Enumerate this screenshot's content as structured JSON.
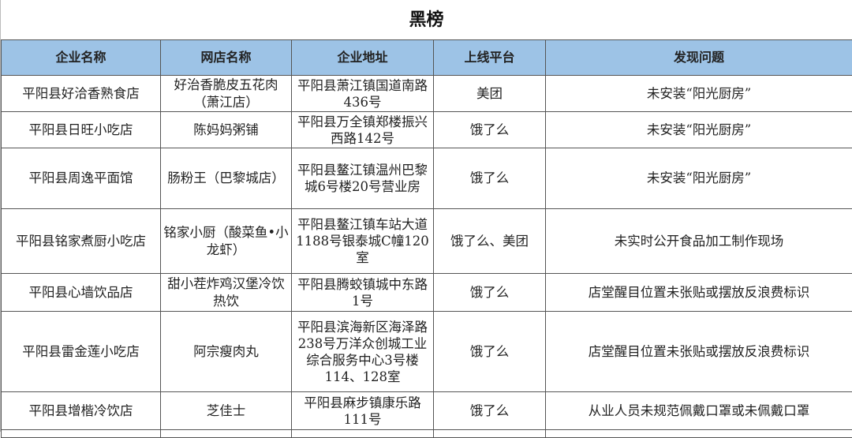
{
  "title": "黑榜",
  "colors": {
    "header_bg": "#9dc3e6"
  },
  "columns": [
    "企业名称",
    "网店名称",
    "企业地址",
    "上线平台",
    "发现问题"
  ],
  "rows": [
    [
      "平阳县好洽香熟食店",
      "好治香脆皮五花肉（萧江店）",
      "平阳县萧江镇国道南路436号",
      "美团",
      "未安装“阳光厨房”"
    ],
    [
      "平阳县日旺小吃店",
      "陈妈妈粥铺",
      "平阳县万全镇郑楼振兴西路142号",
      "饿了么",
      "未安装“阳光厨房”"
    ],
    [
      "平阳县周逸平面馆",
      "肠粉王（巴黎城店）",
      "平阳县鳌江镇温州巴黎城6号楼20号营业房",
      "饿了么",
      "未安装“阳光厨房”"
    ],
    [
      "平阳县铭家煮厨小吃店",
      "铭家小厨（酸菜鱼•小龙虾）",
      "平阳县鳌江镇车站大道1188号银泰城C幢120室",
      "饿了么、美团",
      "未实时公开食品加工制作现场"
    ],
    [
      "平阳县心墙饮品店",
      "甜小茬炸鸡汉堡冷饮热饮",
      "平阳县腾蛟镇城中东路1号",
      "饿了么",
      "店堂醒目位置未张贴或摆放反浪费标识"
    ],
    [
      "平阳县雷金莲小吃店",
      "阿宗瘦肉丸",
      "平阳县滨海新区海泽路238号万洋众创城工业综合服务中心3号楼114、128室",
      "饿了么",
      "店堂醒目位置未张贴或摆放反浪费标识"
    ],
    [
      "平阳县增楷冷饮店",
      "芝佳士",
      "平阳县麻步镇康乐路111号",
      "饿了么",
      "从业人员未规范佩戴口罩或未佩戴口罩"
    ]
  ]
}
